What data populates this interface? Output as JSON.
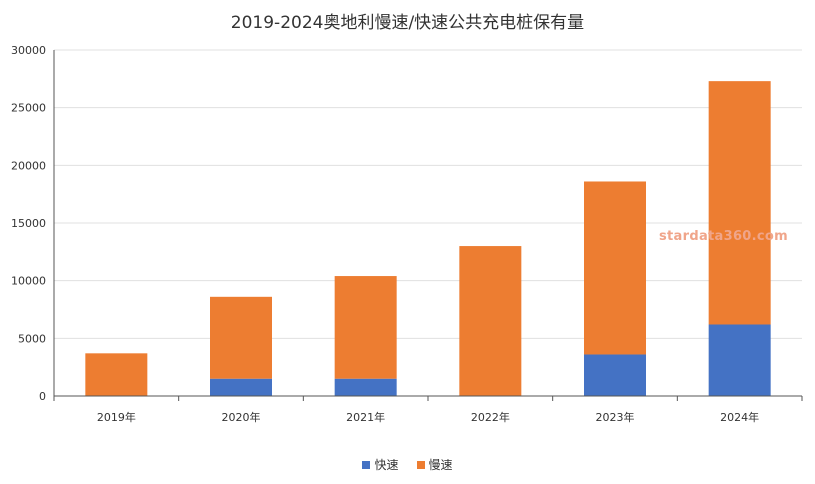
{
  "chart_data": {
    "type": "bar",
    "stacked": true,
    "title": "2019-2024奥地利慢速/快速公共充电桩保有量",
    "categories": [
      "2019年",
      "2020年",
      "2021年",
      "2022年",
      "2023年",
      "2024年"
    ],
    "series": [
      {
        "name": "快速",
        "color": "#4472c4",
        "values": [
          0,
          1500,
          1500,
          0,
          3600,
          6200
        ]
      },
      {
        "name": "慢速",
        "color": "#ed7d31",
        "values": [
          3700,
          7100,
          8900,
          13000,
          15000,
          21100
        ]
      }
    ],
    "xlabel": "",
    "ylabel": "",
    "ylim": [
      0,
      30000
    ],
    "yticks": [
      0,
      5000,
      10000,
      15000,
      20000,
      25000,
      30000
    ],
    "grid": true,
    "legend_position": "bottom"
  },
  "watermark": "stardata360.com"
}
